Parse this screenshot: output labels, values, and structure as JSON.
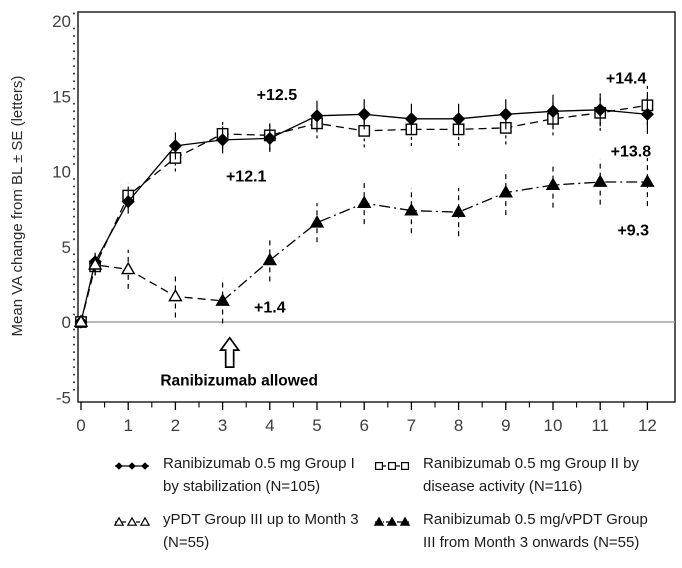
{
  "figure": {
    "y_axis_title": "Mean VA change from BL ± SE (letters)"
  },
  "chart_data": {
    "type": "line",
    "title": "",
    "xlabel": "",
    "ylabel": "Mean VA change from BL ± SE (letters)",
    "xlim": [
      0,
      12.5
    ],
    "ylim": [
      -5.3,
      20.7
    ],
    "grid": false,
    "x_major_ticks": [
      0,
      1,
      2,
      3,
      4,
      5,
      6,
      7,
      8,
      9,
      10,
      11,
      12
    ],
    "y_major_ticks": [
      -5,
      0,
      5,
      10,
      15,
      20
    ],
    "x": [
      0,
      0.3,
      1,
      2,
      3,
      4,
      5,
      6,
      7,
      8,
      9,
      10,
      11,
      12
    ],
    "series": [
      {
        "id": "ranibizumab-group-ii",
        "name": "Ranibizumab 0.5 mg Group II by disease activity (N=116)",
        "marker": "square-open",
        "line_style": "dashed",
        "x": [
          0,
          0.3,
          1,
          2,
          3,
          4,
          5,
          6,
          7,
          8,
          9,
          10,
          11,
          12
        ],
        "values": [
          0,
          3.7,
          8.4,
          10.9,
          12.5,
          12.4,
          13.2,
          12.7,
          12.8,
          12.8,
          12.9,
          13.5,
          13.9,
          14.4
        ],
        "se": [
          0.2,
          0.6,
          0.8,
          0.9,
          1.0,
          1.0,
          1.0,
          1.1,
          1.1,
          1.1,
          1.1,
          1.1,
          1.2,
          1.3
        ]
      },
      {
        "id": "ranibizumab-group-i",
        "name": "Ranibizumab 0.5 mg Group I by stabilization (N=105)",
        "marker": "diamond-filled",
        "line_style": "solid",
        "x": [
          0,
          0.3,
          1,
          2,
          3,
          4,
          5,
          6,
          7,
          8,
          9,
          10,
          11,
          12
        ],
        "values": [
          0,
          4.0,
          8.0,
          11.7,
          12.1,
          12.2,
          13.7,
          13.8,
          13.5,
          13.5,
          13.8,
          14.0,
          14.1,
          13.8
        ],
        "se": [
          0.2,
          0.6,
          0.8,
          0.9,
          0.9,
          0.9,
          1.0,
          1.0,
          1.0,
          1.0,
          1.0,
          1.1,
          1.1,
          1.3
        ]
      },
      {
        "id": "ypdt-group-iii",
        "name": "yPDT Group III up to Month 3 (N=55)",
        "marker": "triangle-open",
        "line_style": "dashed",
        "skip_last_marker": true,
        "x": [
          0,
          0.3,
          1,
          2,
          3
        ],
        "values": [
          0,
          3.8,
          3.5,
          1.7,
          1.4
        ],
        "se": [
          0.2,
          0.7,
          1.3,
          1.4,
          0
        ]
      },
      {
        "id": "ranibizumab-vpdt-group-iii",
        "name": "Ranibizumab 0.5 mg/vPDT Group III from Month 3 onwards (N=55)",
        "marker": "triangle-filled",
        "line_style": "dashdot",
        "x": [
          3,
          4,
          5,
          6,
          7,
          8,
          9,
          10,
          11,
          12
        ],
        "values": [
          1.4,
          4.1,
          6.6,
          7.9,
          7.4,
          7.3,
          8.6,
          9.1,
          9.3,
          9.3
        ],
        "se": [
          1.5,
          1.4,
          1.3,
          1.4,
          1.5,
          1.6,
          1.5,
          1.5,
          1.5,
          1.6
        ]
      }
    ],
    "annotations": [
      {
        "text": "+12.5",
        "x": 4.15,
        "y": 15.1
      },
      {
        "text": "+12.1",
        "x": 3.5,
        "y": 9.7
      },
      {
        "text": "+14.4",
        "x": 11.55,
        "y": 16.2
      },
      {
        "text": "+13.8",
        "x": 11.65,
        "y": 11.35
      },
      {
        "text": "+9.3",
        "x": 11.7,
        "y": 6.1
      },
      {
        "text": "+1.4",
        "x": 4.0,
        "y": 1.0
      }
    ],
    "event_marker": {
      "x": 3.15,
      "arrow_tip_y": -1.05,
      "arrow_base_y": -3.0,
      "label": "Ranibizumab allowed",
      "label_x": 3.35,
      "label_y": -3.9
    },
    "legend_position": "bottom"
  },
  "legend": {
    "items": [
      {
        "id": "ranibizumab-group-i",
        "marker": "diamond-filled",
        "line_style": "solid",
        "lines": [
          "Ranibizumab 0.5 mg Group I",
          "by stabilization (N=105)"
        ]
      },
      {
        "id": "ranibizumab-group-ii",
        "marker": "square-open",
        "line_style": "dashed",
        "lines": [
          "Ranibizumab 0.5 mg Group II by",
          "disease activity (N=116)"
        ]
      },
      {
        "id": "ypdt-group-iii",
        "marker": "triangle-open",
        "line_style": "dashed",
        "lines": [
          "yPDT Group III up to Month 3",
          "(N=55)"
        ]
      },
      {
        "id": "ranibizumab-vpdt-group-iii",
        "marker": "triangle-filled",
        "line_style": "dashdot",
        "lines": [
          "Ranibizumab 0.5 mg/vPDT Group",
          "III from Month 3 onwards (N=55)"
        ]
      }
    ]
  },
  "colors": {
    "foreground": "#000000",
    "zero_line": "#909090",
    "tick_label": "#3f3f3f",
    "background": "#ffffff"
  }
}
